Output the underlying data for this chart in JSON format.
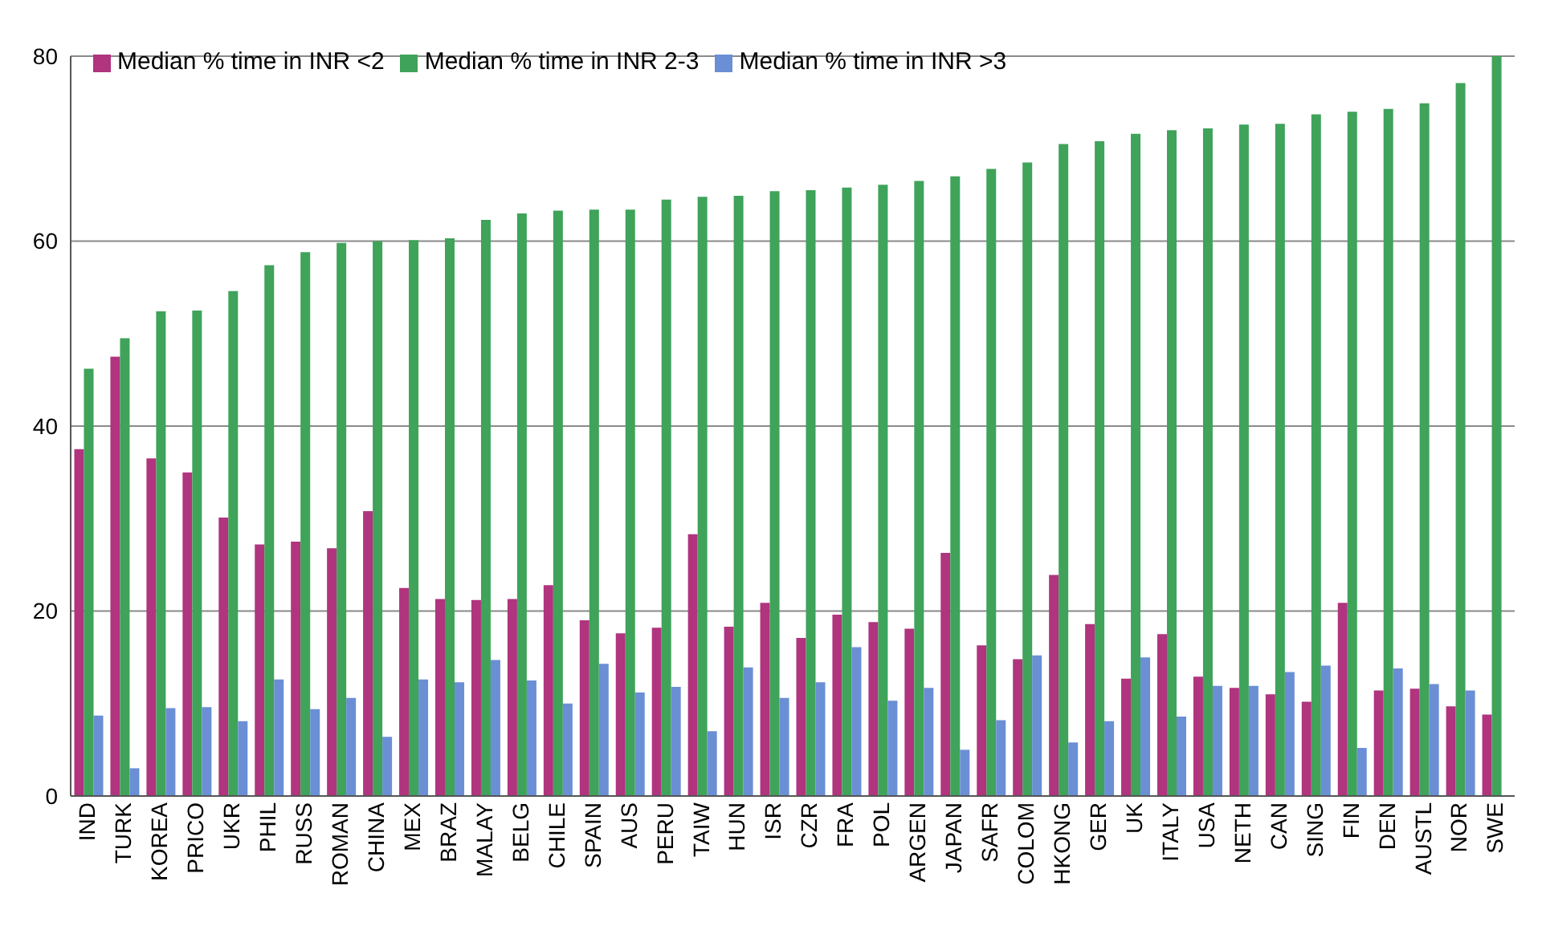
{
  "chart_data": {
    "type": "bar",
    "categories": [
      "IND",
      "TURK",
      "KOREA",
      "PRICO",
      "UKR",
      "PHIL",
      "RUSS",
      "ROMAN",
      "CHINA",
      "MEX",
      "BRAZ",
      "MALAY",
      "BELG",
      "CHILE",
      "SPAIN",
      "AUS",
      "PERU",
      "TAIW",
      "HUN",
      "ISR",
      "CZR",
      "FRA",
      "POL",
      "ARGEN",
      "JAPAN",
      "SAFR",
      "COLOM",
      "HKONG",
      "GER",
      "UK",
      "ITALY",
      "USA",
      "NETH",
      "CAN",
      "SING",
      "FIN",
      "DEN",
      "AUSTL",
      "NOR",
      "SWE"
    ],
    "series": [
      {
        "name": "Median % time in INR <2",
        "color": "#b0347e",
        "values": [
          37.5,
          47.5,
          36.5,
          35,
          30.1,
          27.2,
          27.5,
          26.8,
          30.8,
          22.5,
          21.3,
          21.2,
          21.3,
          22.8,
          19,
          17.6,
          18.2,
          28.3,
          18.3,
          20.9,
          17.1,
          19.6,
          18.8,
          18.1,
          26.3,
          16.3,
          14.8,
          23.9,
          18.6,
          12.7,
          17.5,
          12.9,
          11.7,
          11,
          10.2,
          20.9,
          11.4,
          11.6,
          9.7,
          8.8
        ]
      },
      {
        "name": "Median % time in INR 2-3",
        "color": "#3fa35a",
        "values": [
          46.2,
          49.5,
          52.4,
          52.5,
          54.6,
          57.4,
          58.8,
          59.8,
          60,
          60.1,
          60.3,
          62.3,
          63,
          63.3,
          63.4,
          63.4,
          64.5,
          64.8,
          64.9,
          65.4,
          65.5,
          65.8,
          66.1,
          66.5,
          67,
          67.8,
          68.5,
          70.5,
          70.8,
          71.6,
          72,
          72.2,
          72.6,
          72.7,
          73.7,
          74,
          74.3,
          74.9,
          77.1,
          80
        ]
      },
      {
        "name": "Median % time in INR >3",
        "color": "#6a8fd4",
        "values": [
          8.7,
          3,
          9.5,
          9.6,
          8.1,
          12.6,
          9.4,
          10.6,
          6.4,
          12.6,
          12.3,
          14.7,
          12.5,
          10,
          14.3,
          11.2,
          11.8,
          7,
          13.9,
          10.6,
          12.3,
          16.1,
          10.3,
          11.7,
          5,
          8.2,
          15.2,
          5.8,
          8.1,
          15,
          8.6,
          11.9,
          11.9,
          13.4,
          14.1,
          5.2,
          13.8,
          12.1,
          11.4,
          null
        ]
      }
    ],
    "ylim": [
      0,
      80
    ],
    "yticks": [
      0,
      20,
      40,
      60,
      80
    ],
    "grid": "y",
    "legend": "top left"
  }
}
